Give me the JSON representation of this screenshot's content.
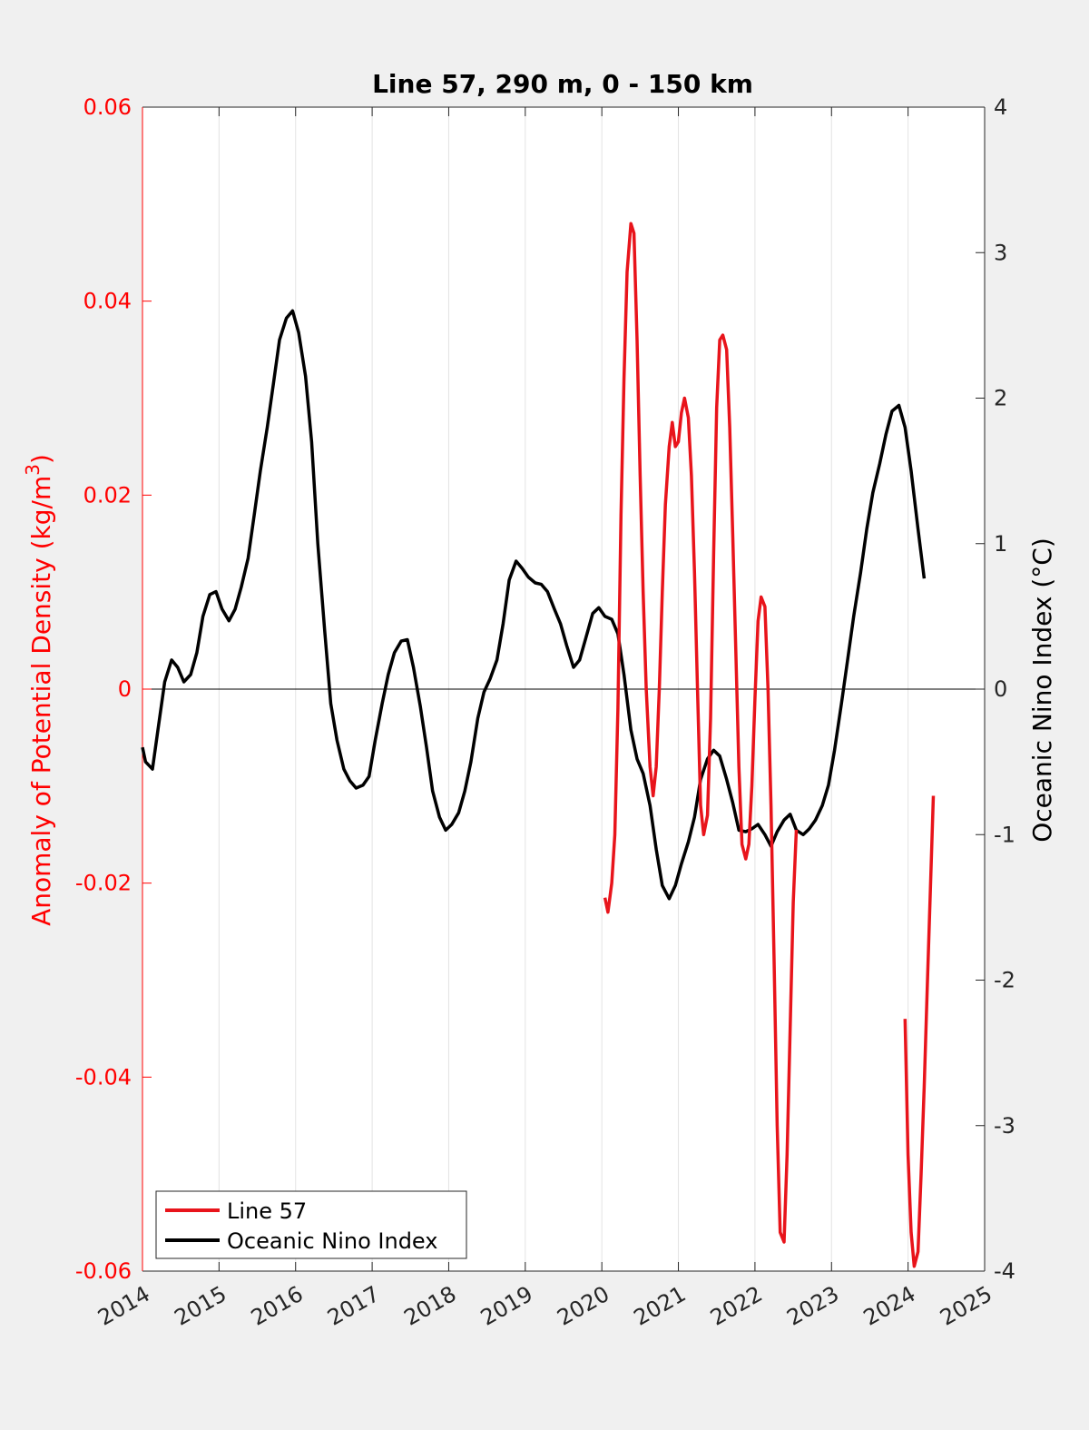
{
  "chart_data": {
    "type": "line",
    "title": "Line 57, 290 m, 0 - 150 km",
    "xlabel": "",
    "ylabel_left": "Anomaly of Potential Density (kg/m",
    "ylabel_left_sup": "3",
    "ylabel_left_close": ")",
    "ylabel_right": "Oceanic Nino Index (°C)",
    "xlim": [
      2014,
      2025
    ],
    "ylim_left": [
      -0.06,
      0.06
    ],
    "ylim_right": [
      -4,
      4
    ],
    "x_ticks": [
      "2014",
      "2015",
      "2016",
      "2017",
      "2018",
      "2019",
      "2020",
      "2021",
      "2022",
      "2023",
      "2024",
      "2025"
    ],
    "left_ticks": [
      "-0.06",
      "-0.04",
      "-0.02",
      "0",
      "0.02",
      "0.04",
      "0.06"
    ],
    "right_ticks": [
      "-4",
      "-3",
      "-2",
      "-1",
      "0",
      "1",
      "2",
      "3",
      "4"
    ],
    "grid": "vertical",
    "legend_position": "bottom-left",
    "colors": {
      "left_axis": "#ff0000",
      "line57": "#e8141b",
      "oni": "#000000"
    },
    "series": [
      {
        "name": "Line 57",
        "axis": "left",
        "segments": [
          [
            [
              2020.04,
              -0.0215
            ],
            [
              2020.08,
              -0.023
            ],
            [
              2020.13,
              -0.02
            ],
            [
              2020.17,
              -0.015
            ],
            [
              2020.21,
              -0.002
            ],
            [
              2020.25,
              0.018
            ],
            [
              2020.29,
              0.032
            ],
            [
              2020.33,
              0.043
            ],
            [
              2020.38,
              0.048
            ],
            [
              2020.42,
              0.047
            ],
            [
              2020.46,
              0.036
            ],
            [
              2020.5,
              0.022
            ],
            [
              2020.54,
              0.01
            ],
            [
              2020.58,
              0.0
            ],
            [
              2020.63,
              -0.008
            ],
            [
              2020.67,
              -0.011
            ],
            [
              2020.71,
              -0.008
            ],
            [
              2020.75,
              0.0
            ],
            [
              2020.79,
              0.01
            ],
            [
              2020.83,
              0.019
            ],
            [
              2020.88,
              0.025
            ],
            [
              2020.92,
              0.0275
            ],
            [
              2020.96,
              0.025
            ],
            [
              2021.0,
              0.0255
            ],
            [
              2021.04,
              0.0285
            ],
            [
              2021.08,
              0.03
            ],
            [
              2021.13,
              0.028
            ],
            [
              2021.17,
              0.022
            ],
            [
              2021.21,
              0.012
            ],
            [
              2021.25,
              0.0
            ],
            [
              2021.29,
              -0.012
            ],
            [
              2021.33,
              -0.015
            ],
            [
              2021.38,
              -0.013
            ],
            [
              2021.42,
              -0.003
            ],
            [
              2021.46,
              0.014
            ],
            [
              2021.5,
              0.029
            ],
            [
              2021.54,
              0.036
            ],
            [
              2021.58,
              0.0365
            ],
            [
              2021.63,
              0.035
            ],
            [
              2021.67,
              0.027
            ],
            [
              2021.71,
              0.016
            ],
            [
              2021.75,
              0.004
            ],
            [
              2021.79,
              -0.008
            ],
            [
              2021.83,
              -0.016
            ],
            [
              2021.88,
              -0.0175
            ],
            [
              2021.92,
              -0.016
            ],
            [
              2021.96,
              -0.01
            ],
            [
              2022.0,
              -0.001
            ],
            [
              2022.04,
              0.007
            ],
            [
              2022.08,
              0.0095
            ],
            [
              2022.13,
              0.0085
            ],
            [
              2022.17,
              0.0
            ],
            [
              2022.21,
              -0.012
            ],
            [
              2022.25,
              -0.028
            ],
            [
              2022.29,
              -0.045
            ],
            [
              2022.33,
              -0.056
            ],
            [
              2022.38,
              -0.057
            ],
            [
              2022.42,
              -0.048
            ],
            [
              2022.46,
              -0.035
            ],
            [
              2022.5,
              -0.022
            ],
            [
              2022.54,
              -0.0145
            ]
          ],
          [
            [
              2023.96,
              -0.034
            ],
            [
              2024.0,
              -0.048
            ],
            [
              2024.04,
              -0.056
            ],
            [
              2024.08,
              -0.0595
            ],
            [
              2024.13,
              -0.058
            ],
            [
              2024.17,
              -0.05
            ],
            [
              2024.21,
              -0.041
            ],
            [
              2024.25,
              -0.031
            ],
            [
              2024.29,
              -0.021
            ],
            [
              2024.33,
              -0.011
            ]
          ]
        ]
      },
      {
        "name": "Oceanic Nino Index",
        "axis": "right",
        "points": [
          [
            2014.0,
            -0.4
          ],
          [
            2014.04,
            -0.5
          ],
          [
            2014.13,
            -0.55
          ],
          [
            2014.21,
            -0.25
          ],
          [
            2014.29,
            0.05
          ],
          [
            2014.38,
            0.2
          ],
          [
            2014.46,
            0.15
          ],
          [
            2014.54,
            0.05
          ],
          [
            2014.63,
            0.1
          ],
          [
            2014.71,
            0.25
          ],
          [
            2014.79,
            0.5
          ],
          [
            2014.88,
            0.65
          ],
          [
            2014.96,
            0.67
          ],
          [
            2015.04,
            0.55
          ],
          [
            2015.13,
            0.47
          ],
          [
            2015.21,
            0.55
          ],
          [
            2015.29,
            0.7
          ],
          [
            2015.38,
            0.9
          ],
          [
            2015.46,
            1.2
          ],
          [
            2015.54,
            1.5
          ],
          [
            2015.63,
            1.8
          ],
          [
            2015.71,
            2.1
          ],
          [
            2015.79,
            2.4
          ],
          [
            2015.88,
            2.55
          ],
          [
            2015.96,
            2.6
          ],
          [
            2016.04,
            2.45
          ],
          [
            2016.13,
            2.15
          ],
          [
            2016.21,
            1.7
          ],
          [
            2016.29,
            1.0
          ],
          [
            2016.38,
            0.4
          ],
          [
            2016.46,
            -0.1
          ],
          [
            2016.54,
            -0.35
          ],
          [
            2016.63,
            -0.55
          ],
          [
            2016.71,
            -0.63
          ],
          [
            2016.79,
            -0.68
          ],
          [
            2016.88,
            -0.66
          ],
          [
            2016.96,
            -0.6
          ],
          [
            2017.04,
            -0.35
          ],
          [
            2017.13,
            -0.1
          ],
          [
            2017.21,
            0.1
          ],
          [
            2017.29,
            0.25
          ],
          [
            2017.38,
            0.33
          ],
          [
            2017.46,
            0.34
          ],
          [
            2017.54,
            0.15
          ],
          [
            2017.63,
            -0.12
          ],
          [
            2017.71,
            -0.4
          ],
          [
            2017.79,
            -0.7
          ],
          [
            2017.88,
            -0.88
          ],
          [
            2017.96,
            -0.97
          ],
          [
            2018.04,
            -0.93
          ],
          [
            2018.13,
            -0.85
          ],
          [
            2018.21,
            -0.7
          ],
          [
            2018.29,
            -0.5
          ],
          [
            2018.38,
            -0.2
          ],
          [
            2018.46,
            -0.02
          ],
          [
            2018.54,
            0.07
          ],
          [
            2018.63,
            0.2
          ],
          [
            2018.71,
            0.45
          ],
          [
            2018.79,
            0.75
          ],
          [
            2018.88,
            0.88
          ],
          [
            2018.96,
            0.83
          ],
          [
            2019.04,
            0.77
          ],
          [
            2019.13,
            0.73
          ],
          [
            2019.21,
            0.72
          ],
          [
            2019.29,
            0.67
          ],
          [
            2019.38,
            0.55
          ],
          [
            2019.46,
            0.45
          ],
          [
            2019.54,
            0.3
          ],
          [
            2019.63,
            0.15
          ],
          [
            2019.71,
            0.2
          ],
          [
            2019.79,
            0.35
          ],
          [
            2019.88,
            0.52
          ],
          [
            2019.96,
            0.56
          ],
          [
            2020.04,
            0.5
          ],
          [
            2020.13,
            0.48
          ],
          [
            2020.21,
            0.38
          ],
          [
            2020.29,
            0.1
          ],
          [
            2020.38,
            -0.28
          ],
          [
            2020.46,
            -0.48
          ],
          [
            2020.54,
            -0.58
          ],
          [
            2020.63,
            -0.8
          ],
          [
            2020.71,
            -1.1
          ],
          [
            2020.79,
            -1.35
          ],
          [
            2020.88,
            -1.44
          ],
          [
            2020.96,
            -1.35
          ],
          [
            2021.04,
            -1.2
          ],
          [
            2021.13,
            -1.05
          ],
          [
            2021.21,
            -0.88
          ],
          [
            2021.29,
            -0.62
          ],
          [
            2021.38,
            -0.48
          ],
          [
            2021.46,
            -0.42
          ],
          [
            2021.54,
            -0.46
          ],
          [
            2021.63,
            -0.62
          ],
          [
            2021.71,
            -0.78
          ],
          [
            2021.79,
            -0.97
          ],
          [
            2021.88,
            -0.98
          ],
          [
            2021.96,
            -0.96
          ],
          [
            2022.04,
            -0.93
          ],
          [
            2022.13,
            -1.0
          ],
          [
            2022.21,
            -1.08
          ],
          [
            2022.29,
            -0.98
          ],
          [
            2022.38,
            -0.9
          ],
          [
            2022.46,
            -0.86
          ],
          [
            2022.54,
            -0.97
          ],
          [
            2022.63,
            -1.0
          ],
          [
            2022.71,
            -0.96
          ],
          [
            2022.79,
            -0.9
          ],
          [
            2022.88,
            -0.8
          ],
          [
            2022.96,
            -0.66
          ],
          [
            2023.04,
            -0.42
          ],
          [
            2023.13,
            -0.1
          ],
          [
            2023.21,
            0.2
          ],
          [
            2023.29,
            0.5
          ],
          [
            2023.38,
            0.8
          ],
          [
            2023.46,
            1.1
          ],
          [
            2023.54,
            1.35
          ],
          [
            2023.63,
            1.55
          ],
          [
            2023.71,
            1.75
          ],
          [
            2023.79,
            1.91
          ],
          [
            2023.88,
            1.95
          ],
          [
            2023.96,
            1.8
          ],
          [
            2024.04,
            1.5
          ],
          [
            2024.13,
            1.1
          ],
          [
            2024.21,
            0.76
          ]
        ]
      }
    ]
  }
}
